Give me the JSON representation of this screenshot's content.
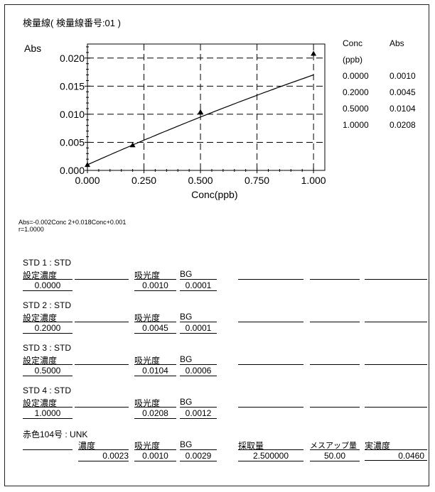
{
  "report": {
    "title": "検量線( 検量線番号:01 )",
    "y_axis_label": "Abs",
    "x_axis_label": "Conc(ppb)"
  },
  "chart_data": {
    "type": "scatter",
    "title": "検量線( 検量線番号:01 )",
    "xlabel": "Conc(ppb)",
    "ylabel": "Abs",
    "xlim": [
      0.0,
      1.05
    ],
    "ylim": [
      0.0,
      0.0225
    ],
    "x_ticks": [
      "0.000",
      "0.250",
      "0.500",
      "0.750",
      "1.000"
    ],
    "y_ticks": [
      "0.000",
      "0.005",
      "0.010",
      "0.015",
      "0.020"
    ],
    "grid": true,
    "points": [
      {
        "x": 0.0,
        "y": 0.001
      },
      {
        "x": 0.2,
        "y": 0.0045
      },
      {
        "x": 0.5,
        "y": 0.0104
      },
      {
        "x": 1.0,
        "y": 0.0208
      }
    ],
    "fit": {
      "a": -0.002,
      "b": 0.018,
      "c": 0.001
    }
  },
  "legend": {
    "header_conc": "Conc",
    "header_abs": "Abs",
    "unit": "(ppb)",
    "rows": [
      {
        "conc": "0.0000",
        "abs": "0.0010"
      },
      {
        "conc": "0.2000",
        "abs": "0.0045"
      },
      {
        "conc": "0.5000",
        "abs": "0.0104"
      },
      {
        "conc": "1.0000",
        "abs": "0.0208"
      }
    ]
  },
  "equation": {
    "line1": "Abs=-0.002Conc   2+0.018Conc+0.001",
    "line2": "r=1.0000"
  },
  "std_blocks": [
    {
      "title": "STD 1 : STD",
      "conc_label": "設定濃度",
      "abs_label": "吸光度",
      "bg_label": "BG",
      "conc": "0.0000",
      "abs": "0.0010",
      "bg": "0.0001"
    },
    {
      "title": "STD 2 : STD",
      "conc_label": "設定濃度",
      "abs_label": "吸光度",
      "bg_label": "BG",
      "conc": "0.2000",
      "abs": "0.0045",
      "bg": "0.0001"
    },
    {
      "title": "STD 3 : STD",
      "conc_label": "設定濃度",
      "abs_label": "吸光度",
      "bg_label": "BG",
      "conc": "0.5000",
      "abs": "0.0104",
      "bg": "0.0006"
    },
    {
      "title": "STD 4 : STD",
      "conc_label": "設定濃度",
      "abs_label": "吸光度",
      "bg_label": "BG",
      "conc": "1.0000",
      "abs": "0.0208",
      "bg": "0.0012"
    }
  ],
  "unk": {
    "title": "赤色104号 : UNK",
    "labels": {
      "conc": "濃度",
      "abs": "吸光度",
      "bg": "BG",
      "sample": "採取量",
      "makeup": "メスアップ量",
      "actual": "実濃度"
    },
    "values": {
      "conc": "0.0023",
      "abs": "0.0010",
      "bg": "0.0029",
      "sample": "2.500000",
      "makeup": "50.00",
      "actual": "0.0460"
    }
  }
}
